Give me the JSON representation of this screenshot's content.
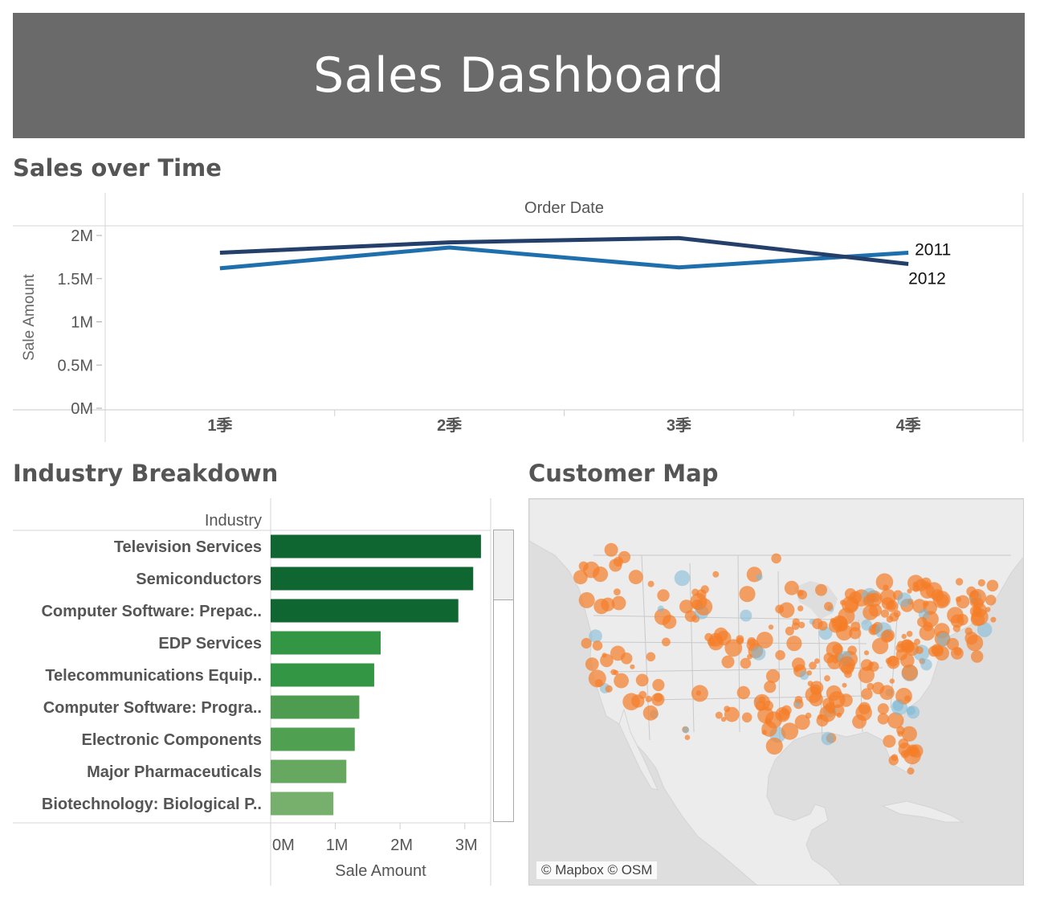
{
  "banner": {
    "title": "Sales Dashboard"
  },
  "sections": {
    "sales_over_time": "Sales over Time",
    "industry_breakdown": "Industry Breakdown",
    "customer_map": "Customer Map"
  },
  "map": {
    "credit": "© Mapbox © OSM"
  },
  "colors": {
    "line_2011": "#1f6fad",
    "line_2012": "#243f6a",
    "bar_dark": "#0f6630",
    "bar_mid": "#339644",
    "bar_light": "#6aae65",
    "map_orange": "#f57d28",
    "map_blue": "#7ab8d6"
  },
  "chart_data": [
    {
      "type": "line",
      "header": "Order Date",
      "ylabel": "Sale Amount",
      "categories": [
        "1季",
        "2季",
        "3季",
        "4季"
      ],
      "ylim": [
        0,
        2000000
      ],
      "yticks": [
        {
          "value": 0,
          "label": "0M"
        },
        {
          "value": 500000,
          "label": "0.5M"
        },
        {
          "value": 1000000,
          "label": "1M"
        },
        {
          "value": 1500000,
          "label": "1.5M"
        },
        {
          "value": 2000000,
          "label": "2M"
        }
      ],
      "series": [
        {
          "name": "2011",
          "values": [
            1620000,
            1860000,
            1630000,
            1800000
          ]
        },
        {
          "name": "2012",
          "values": [
            1800000,
            1920000,
            1970000,
            1670000
          ]
        }
      ]
    },
    {
      "type": "bar",
      "orientation": "horizontal",
      "header": "Industry",
      "xlabel": "Sale Amount",
      "xlim": [
        0,
        3400000
      ],
      "xticks": [
        {
          "value": 0,
          "label": "0M"
        },
        {
          "value": 1000000,
          "label": "1M"
        },
        {
          "value": 2000000,
          "label": "2M"
        },
        {
          "value": 3000000,
          "label": "3M"
        }
      ],
      "categories": [
        "Television Services",
        "Semiconductors",
        "Computer Software: Prepac..",
        "EDP Services",
        "Telecommunications Equip..",
        "Computer Software: Progra..",
        "Electronic Components",
        "Major Pharmaceuticals",
        "Biotechnology: Biological P.."
      ],
      "values": [
        3250000,
        3130000,
        2900000,
        1700000,
        1600000,
        1370000,
        1300000,
        1170000,
        970000
      ]
    }
  ]
}
